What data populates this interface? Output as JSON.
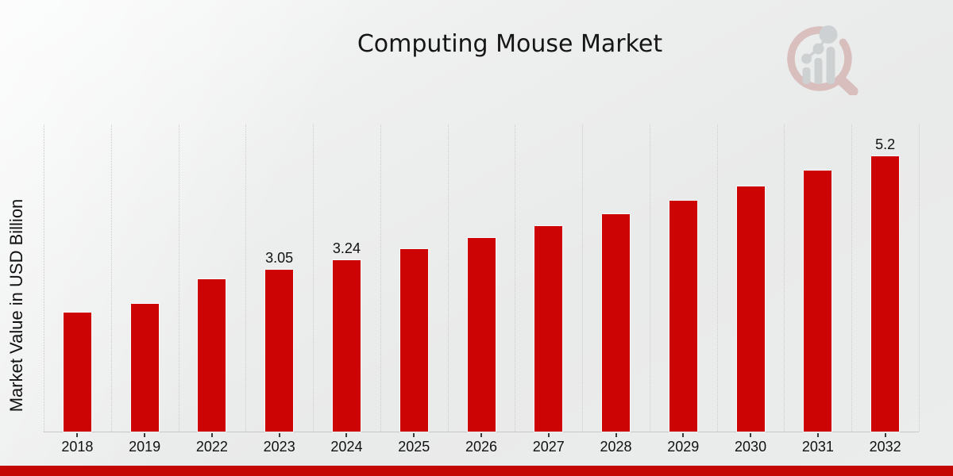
{
  "page": {
    "background_base": "#e9eaea",
    "background_highlight": "#f8f9f9",
    "footer_band_color": "#c50704",
    "text_color": "#111111"
  },
  "header": {
    "title": "Computing Mouse Market"
  },
  "logo": {
    "name": "market-research-magnifier-watermark",
    "ring_color": "#b25a52",
    "glyph_color": "#8f969b"
  },
  "chart_data": {
    "type": "bar",
    "title": "Computing Mouse Market",
    "xlabel": "",
    "ylabel": "Market Value in USD Billion",
    "categories": [
      "2018",
      "2019",
      "2022",
      "2023",
      "2024",
      "2025",
      "2026",
      "2027",
      "2028",
      "2029",
      "2030",
      "2031",
      "2032"
    ],
    "values": [
      2.25,
      2.41,
      2.87,
      3.05,
      3.24,
      3.44,
      3.65,
      3.88,
      4.11,
      4.36,
      4.63,
      4.92,
      5.2
    ],
    "data_labels": {
      "2023": "3.05",
      "2024": "3.24",
      "2032": "5.2"
    },
    "bar_color": "#cc0504",
    "ylim": [
      0,
      5.81
    ],
    "grid": "vertical-dotted",
    "gridline_color": "#cbcccc",
    "legend_position": "none"
  }
}
